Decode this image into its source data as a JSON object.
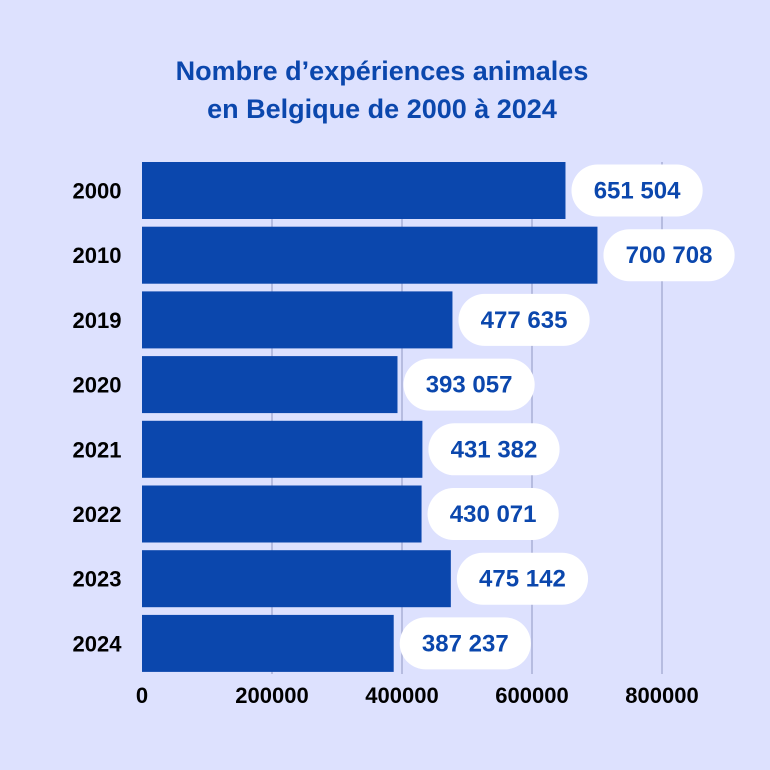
{
  "chart_data": {
    "type": "bar",
    "orientation": "horizontal",
    "title_lines": [
      "Nombre d’expériences animales",
      "en Belgique de 2000 à 2024"
    ],
    "categories": [
      "2000",
      "2010",
      "2019",
      "2020",
      "2021",
      "2022",
      "2023",
      "2024"
    ],
    "values": [
      651504,
      700708,
      477635,
      393057,
      431382,
      430071,
      475142,
      387237
    ],
    "value_labels": [
      "651 504",
      "700 708",
      "477 635",
      "393 057",
      "431 382",
      "430 071",
      "475 142",
      "387 237"
    ],
    "x_ticks": [
      0,
      200000,
      400000,
      600000,
      800000
    ],
    "x_tick_labels": [
      "0",
      "200000",
      "400000",
      "600000",
      "800000"
    ],
    "xlim": [
      0,
      800000
    ],
    "xlabel": "",
    "ylabel": "",
    "grid": true,
    "legend": "none"
  },
  "colors": {
    "background": "#dde1fe",
    "bar": "#0b47ad",
    "title": "#0b47ad",
    "label_pill": "#ffffff",
    "label_text": "#0b47ad",
    "grid": "#a9afd6",
    "axis_text": "#000000"
  }
}
